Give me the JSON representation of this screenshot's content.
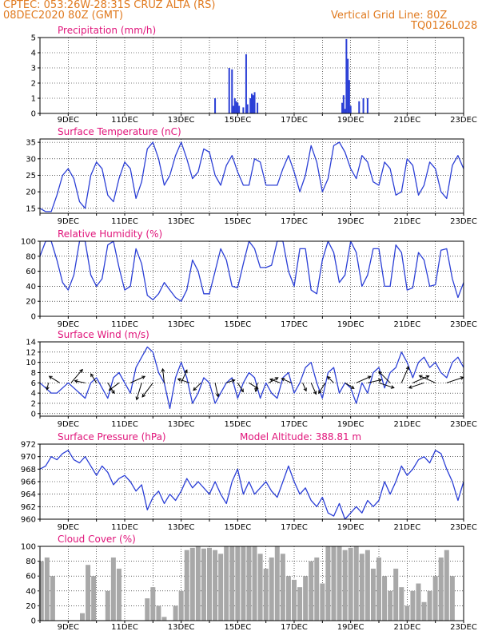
{
  "header": {
    "line1": "CPTEC:   053:26W-28:31S   CRUZ ALTA (RS)",
    "line2": "08DEC2020 80Z (GMT)",
    "vertical_grid": "Vertical Grid Line: 80Z",
    "code": "TQ0126L028"
  },
  "colors": {
    "header": "#e07a1f",
    "title": "#e0147a",
    "line": "#2b3fd6",
    "cloud": "#a8a8a8",
    "grid": "#000000"
  },
  "chart_data": [
    {
      "type": "bar",
      "title": "Precipitation (mm/h)",
      "xlabels": [
        "9DEC",
        "11DEC",
        "13DEC",
        "15DEC",
        "17DEC",
        "19DEC",
        "21DEC",
        "23DEC"
      ],
      "xlabel_days": [
        9,
        11,
        13,
        15,
        17,
        19,
        21,
        23
      ],
      "x_range_days": [
        8.0,
        23.0
      ],
      "ylim": [
        0,
        5
      ],
      "yticks": [
        0,
        1,
        2,
        3,
        4,
        5
      ],
      "values": [
        [
          14.2,
          1.0
        ],
        [
          14.7,
          3.0
        ],
        [
          14.8,
          2.9
        ],
        [
          14.85,
          0.5
        ],
        [
          14.9,
          1.0
        ],
        [
          14.95,
          0.8
        ],
        [
          15.0,
          0.7
        ],
        [
          15.05,
          0.5
        ],
        [
          15.2,
          0.4
        ],
        [
          15.3,
          3.9
        ],
        [
          15.35,
          0.6
        ],
        [
          15.45,
          1.0
        ],
        [
          15.5,
          1.3
        ],
        [
          15.55,
          1.2
        ],
        [
          15.6,
          1.4
        ],
        [
          15.7,
          0.7
        ],
        [
          18.7,
          0.7
        ],
        [
          18.75,
          1.2
        ],
        [
          18.8,
          0.3
        ],
        [
          18.85,
          4.9
        ],
        [
          18.9,
          3.6
        ],
        [
          18.95,
          2.2
        ],
        [
          19.0,
          0.5
        ],
        [
          19.3,
          0.8
        ],
        [
          19.45,
          1.0
        ],
        [
          19.6,
          1.0
        ]
      ]
    },
    {
      "type": "line",
      "title": "Surface Temperature (nC)",
      "xlabels": [
        "9DEC",
        "11DEC",
        "13DEC",
        "15DEC",
        "17DEC",
        "19DEC",
        "21DEC",
        "23DEC"
      ],
      "xlabel_days": [
        9,
        11,
        13,
        15,
        17,
        19,
        21,
        23
      ],
      "x_range_days": [
        8.0,
        23.0
      ],
      "ylim": [
        13.5,
        36
      ],
      "yticks": [
        15,
        20,
        25,
        30,
        35
      ],
      "x": [
        8.0,
        8.2,
        8.4,
        8.6,
        8.8,
        9.0,
        9.2,
        9.4,
        9.6,
        9.8,
        10.0,
        10.2,
        10.4,
        10.6,
        10.8,
        11.0,
        11.2,
        11.4,
        11.6,
        11.8,
        12.0,
        12.2,
        12.4,
        12.6,
        12.8,
        13.0,
        13.2,
        13.4,
        13.6,
        13.8,
        14.0,
        14.2,
        14.4,
        14.6,
        14.8,
        15.0,
        15.2,
        15.4,
        15.6,
        15.8,
        16.0,
        16.2,
        16.4,
        16.6,
        16.8,
        17.0,
        17.2,
        17.4,
        17.6,
        17.8,
        18.0,
        18.2,
        18.4,
        18.6,
        18.8,
        19.0,
        19.2,
        19.4,
        19.6,
        19.8,
        20.0,
        20.2,
        20.4,
        20.6,
        20.8,
        21.0,
        21.2,
        21.4,
        21.6,
        21.8,
        22.0,
        22.2,
        22.4,
        22.6,
        22.8,
        23.0
      ],
      "y": [
        15,
        14,
        14,
        19,
        25,
        27,
        24,
        17,
        15,
        25,
        29,
        27,
        19,
        17,
        24,
        29,
        27,
        18,
        23,
        33,
        35,
        30,
        22,
        25,
        31,
        35,
        30,
        24,
        26,
        33,
        32,
        25,
        22,
        28,
        31,
        26,
        22,
        22,
        30,
        29,
        22,
        22,
        22,
        27,
        31,
        26,
        20,
        25,
        34,
        29,
        20,
        24,
        34,
        35,
        32,
        27,
        24,
        31,
        29,
        23,
        22,
        29,
        27,
        19,
        20,
        30,
        28,
        19,
        22,
        29,
        27,
        20,
        18,
        28,
        31,
        27
      ]
    },
    {
      "type": "line",
      "title": "Relative Humidity (%)",
      "xlabels": [
        "9DEC",
        "11DEC",
        "13DEC",
        "15DEC",
        "17DEC",
        "19DEC",
        "21DEC",
        "23DEC"
      ],
      "xlabel_days": [
        9,
        11,
        13,
        15,
        17,
        19,
        21,
        23
      ],
      "x_range_days": [
        8.0,
        23.0
      ],
      "ylim": [
        0,
        100
      ],
      "yticks": [
        0,
        20,
        40,
        60,
        80,
        100
      ],
      "x": [
        8.0,
        8.2,
        8.4,
        8.6,
        8.8,
        9.0,
        9.2,
        9.4,
        9.6,
        9.8,
        10.0,
        10.2,
        10.4,
        10.6,
        10.8,
        11.0,
        11.2,
        11.4,
        11.6,
        11.8,
        12.0,
        12.2,
        12.4,
        12.6,
        12.8,
        13.0,
        13.2,
        13.4,
        13.6,
        13.8,
        14.0,
        14.2,
        14.4,
        14.6,
        14.8,
        15.0,
        15.2,
        15.4,
        15.6,
        15.8,
        16.0,
        16.2,
        16.4,
        16.6,
        16.8,
        17.0,
        17.2,
        17.4,
        17.6,
        17.8,
        18.0,
        18.2,
        18.4,
        18.6,
        18.8,
        19.0,
        19.2,
        19.4,
        19.6,
        19.8,
        20.0,
        20.2,
        20.4,
        20.6,
        20.8,
        21.0,
        21.2,
        21.4,
        21.6,
        21.8,
        22.0,
        22.2,
        22.4,
        22.6,
        22.8,
        23.0
      ],
      "y": [
        80,
        100,
        100,
        75,
        45,
        35,
        55,
        100,
        100,
        55,
        40,
        50,
        95,
        100,
        65,
        35,
        40,
        90,
        70,
        28,
        22,
        30,
        45,
        35,
        25,
        20,
        35,
        75,
        60,
        30,
        30,
        60,
        90,
        75,
        40,
        38,
        70,
        100,
        90,
        65,
        65,
        68,
        100,
        100,
        60,
        40,
        90,
        90,
        35,
        30,
        75,
        100,
        85,
        45,
        55,
        100,
        85,
        40,
        55,
        90,
        90,
        40,
        40,
        95,
        85,
        35,
        38,
        85,
        75,
        40,
        42,
        88,
        90,
        50,
        25,
        45
      ]
    },
    {
      "type": "line",
      "title": "Surface Wind (m/s)",
      "xlabels": [
        "9DEC",
        "11DEC",
        "13DEC",
        "15DEC",
        "17DEC",
        "19DEC",
        "21DEC",
        "23DEC"
      ],
      "xlabel_days": [
        9,
        11,
        13,
        15,
        17,
        19,
        21,
        23
      ],
      "x_range_days": [
        8.0,
        23.0
      ],
      "ylim": [
        -0.5,
        14
      ],
      "yticks": [
        0,
        2,
        4,
        6,
        8,
        10,
        12,
        14
      ],
      "x": [
        8.0,
        8.2,
        8.4,
        8.6,
        8.8,
        9.0,
        9.2,
        9.4,
        9.6,
        9.8,
        10.0,
        10.2,
        10.4,
        10.6,
        10.8,
        11.0,
        11.2,
        11.4,
        11.6,
        11.8,
        12.0,
        12.2,
        12.4,
        12.6,
        12.8,
        13.0,
        13.2,
        13.4,
        13.6,
        13.8,
        14.0,
        14.2,
        14.4,
        14.6,
        14.8,
        15.0,
        15.2,
        15.4,
        15.6,
        15.8,
        16.0,
        16.2,
        16.4,
        16.6,
        16.8,
        17.0,
        17.2,
        17.4,
        17.6,
        17.8,
        18.0,
        18.2,
        18.4,
        18.6,
        18.8,
        19.0,
        19.2,
        19.4,
        19.6,
        19.8,
        20.0,
        20.2,
        20.4,
        20.6,
        20.8,
        21.0,
        21.2,
        21.4,
        21.6,
        21.8,
        22.0,
        22.2,
        22.4,
        22.6,
        22.8,
        23.0
      ],
      "y": [
        6,
        5,
        4,
        4,
        5,
        6,
        5,
        4,
        3,
        6,
        7,
        5,
        3,
        7,
        8,
        6,
        4,
        9,
        11,
        13,
        12,
        8,
        6,
        1,
        7,
        10,
        7,
        2,
        4,
        7,
        6,
        2,
        4,
        6,
        7,
        3,
        6,
        8,
        7,
        3,
        6,
        4,
        3,
        7,
        8,
        4,
        6,
        9,
        10,
        6,
        3,
        8,
        9,
        4,
        6,
        5,
        2,
        6,
        4,
        8,
        9,
        5,
        8,
        9,
        12,
        10,
        7,
        10,
        11,
        9,
        10,
        8,
        7,
        10,
        11,
        9
      ],
      "arrow_xdays": [
        8.3,
        8.7,
        9.1,
        9.6,
        10.0,
        10.4,
        10.8,
        11.2,
        11.6,
        12.0,
        12.4,
        13.0,
        13.3,
        13.7,
        14.2,
        14.6,
        15.0,
        15.4,
        15.7,
        16.1,
        16.5,
        16.9,
        17.3,
        17.6,
        18.1,
        18.4,
        18.8,
        19.2,
        19.6,
        20.0,
        20.4,
        20.8,
        21.2,
        21.6,
        22.0,
        22.4
      ],
      "arrow_u": [
        -0.2,
        -0.8,
        0.6,
        -1.0,
        -0.5,
        0.5,
        -0.8,
        0.9,
        -0.3,
        -0.6,
        -0.1,
        0.4,
        -0.9,
        -0.7,
        0.2,
        0.9,
        0.5,
        0.8,
        -0.2,
        0.9,
        -0.8,
        -0.9,
        0.4,
        0.4,
        -0.5,
        -0.7,
        0.8,
        0.9,
        0.9,
        0.9,
        -0.6,
        0.4,
        0.7,
        -0.9,
        -0.9,
        0.9
      ],
      "arrow_v": [
        -0.9,
        0.5,
        0.7,
        0.2,
        0.8,
        -0.8,
        -0.6,
        0.4,
        -1.0,
        -0.8,
        0.9,
        0.9,
        0.3,
        -0.7,
        -0.9,
        0.3,
        -0.8,
        -0.5,
        -1.0,
        0.5,
        0.3,
        0.4,
        -0.9,
        -0.9,
        -0.8,
        0.7,
        -0.5,
        0.4,
        0.2,
        -0.3,
        0.6,
        0.9,
        0.3,
        -0.3,
        0.4,
        0.3
      ],
      "arrow_mag": [
        0.4,
        0.7,
        1.0,
        0.6,
        0.6,
        0.7,
        0.7,
        0.9,
        1.0,
        1.0,
        0.8,
        0.8,
        0.7,
        0.6,
        0.8,
        0.5,
        0.6,
        0.6,
        0.5,
        0.6,
        0.6,
        0.6,
        0.5,
        0.7,
        0.7,
        0.5,
        0.6,
        0.9,
        0.8,
        0.9,
        0.9,
        1.0,
        1.0,
        0.9,
        1.0,
        1.0
      ]
    },
    {
      "type": "line",
      "title": "Surface Pressure (hPa)",
      "annotation": "Model Altitude: 388.81 m",
      "xlabels": [
        "9DEC",
        "11DEC",
        "13DEC",
        "15DEC",
        "17DEC",
        "19DEC",
        "21DEC",
        "23DEC"
      ],
      "xlabel_days": [
        9,
        11,
        13,
        15,
        17,
        19,
        21,
        23
      ],
      "x_range_days": [
        8.0,
        23.0
      ],
      "ylim": [
        960,
        972
      ],
      "yticks": [
        960,
        962,
        964,
        966,
        968,
        970,
        972
      ],
      "x": [
        8.0,
        8.2,
        8.4,
        8.6,
        8.8,
        9.0,
        9.2,
        9.4,
        9.6,
        9.8,
        10.0,
        10.2,
        10.4,
        10.6,
        10.8,
        11.0,
        11.2,
        11.4,
        11.6,
        11.8,
        12.0,
        12.2,
        12.4,
        12.6,
        12.8,
        13.0,
        13.2,
        13.4,
        13.6,
        13.8,
        14.0,
        14.2,
        14.4,
        14.6,
        14.8,
        15.0,
        15.2,
        15.4,
        15.6,
        15.8,
        16.0,
        16.2,
        16.4,
        16.6,
        16.8,
        17.0,
        17.2,
        17.4,
        17.6,
        17.8,
        18.0,
        18.2,
        18.4,
        18.6,
        18.8,
        19.0,
        19.2,
        19.4,
        19.6,
        19.8,
        20.0,
        20.2,
        20.4,
        20.6,
        20.8,
        21.0,
        21.2,
        21.4,
        21.6,
        21.8,
        22.0,
        22.2,
        22.4,
        22.6,
        22.8,
        23.0
      ],
      "y": [
        968,
        968.5,
        970,
        969.5,
        970.5,
        971,
        969.5,
        969,
        970,
        968.5,
        967,
        968.5,
        967.5,
        965.5,
        966.5,
        967,
        966,
        964.5,
        965.5,
        961.5,
        963.5,
        964.5,
        962.5,
        964,
        963,
        964.5,
        966.5,
        965,
        966,
        965,
        964,
        966,
        964,
        962.5,
        966,
        968,
        964,
        966,
        964,
        965,
        966,
        964.5,
        963.5,
        966,
        968.5,
        966,
        964,
        965,
        963,
        962,
        963.5,
        961,
        960.5,
        962.5,
        960,
        961,
        962,
        961,
        963,
        962,
        963,
        966,
        964,
        966,
        968.5,
        967,
        968,
        969.5,
        970,
        969,
        971,
        970.5,
        968,
        966,
        963,
        966
      ]
    },
    {
      "type": "bar",
      "title": "Cloud Cover (%)",
      "xlabels": [
        "9DEC",
        "11DEC",
        "13DEC",
        "15DEC",
        "17DEC",
        "19DEC",
        "21DEC",
        "23DEC"
      ],
      "xlabel_days": [
        9,
        11,
        13,
        15,
        17,
        19,
        21,
        23
      ],
      "x_range_days": [
        8.0,
        23.0
      ],
      "ylim": [
        0,
        100
      ],
      "yticks": [
        0,
        20,
        40,
        60,
        80,
        100
      ],
      "values": [
        [
          8.05,
          80
        ],
        [
          8.25,
          85
        ],
        [
          8.45,
          60
        ],
        [
          9.5,
          10
        ],
        [
          9.7,
          75
        ],
        [
          9.9,
          60
        ],
        [
          10.4,
          40
        ],
        [
          10.6,
          85
        ],
        [
          10.8,
          70
        ],
        [
          11.8,
          30
        ],
        [
          12.0,
          45
        ],
        [
          12.2,
          20
        ],
        [
          12.4,
          5
        ],
        [
          12.8,
          20
        ],
        [
          13.0,
          40
        ],
        [
          13.2,
          95
        ],
        [
          13.4,
          98
        ],
        [
          13.6,
          100
        ],
        [
          13.8,
          97
        ],
        [
          14.0,
          98
        ],
        [
          14.2,
          95
        ],
        [
          14.4,
          90
        ],
        [
          14.6,
          100
        ],
        [
          14.8,
          100
        ],
        [
          15.0,
          100
        ],
        [
          15.2,
          100
        ],
        [
          15.4,
          100
        ],
        [
          15.6,
          100
        ],
        [
          15.8,
          90
        ],
        [
          16.0,
          70
        ],
        [
          16.2,
          85
        ],
        [
          16.4,
          100
        ],
        [
          16.6,
          90
        ],
        [
          16.8,
          60
        ],
        [
          17.0,
          55
        ],
        [
          17.2,
          45
        ],
        [
          17.4,
          60
        ],
        [
          17.6,
          80
        ],
        [
          17.8,
          85
        ],
        [
          18.0,
          50
        ],
        [
          18.2,
          100
        ],
        [
          18.4,
          100
        ],
        [
          18.6,
          100
        ],
        [
          18.8,
          95
        ],
        [
          19.0,
          98
        ],
        [
          19.2,
          100
        ],
        [
          19.4,
          90
        ],
        [
          19.6,
          95
        ],
        [
          19.8,
          70
        ],
        [
          20.0,
          85
        ],
        [
          20.2,
          60
        ],
        [
          20.4,
          40
        ],
        [
          20.6,
          70
        ],
        [
          20.8,
          45
        ],
        [
          21.0,
          20
        ],
        [
          21.2,
          40
        ],
        [
          21.4,
          50
        ],
        [
          21.6,
          25
        ],
        [
          21.8,
          40
        ],
        [
          22.0,
          60
        ],
        [
          22.2,
          85
        ],
        [
          22.4,
          95
        ],
        [
          22.6,
          60
        ]
      ]
    }
  ]
}
